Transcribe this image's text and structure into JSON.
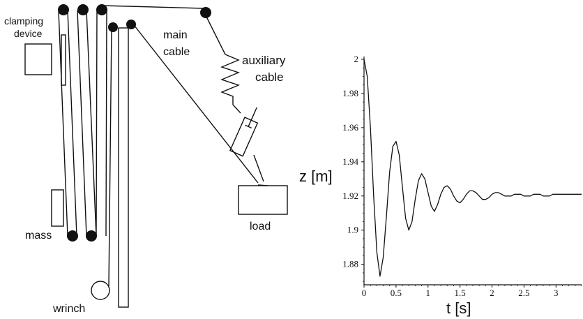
{
  "diagram": {
    "labels": {
      "clamping_device_line1": "clamping",
      "clamping_device_line2": "device",
      "main_cable_line1": "main",
      "main_cable_line2": "cable",
      "auxiliary_cable_line1": "auxiliary",
      "auxiliary_cable_line2": "cable",
      "mass": "mass",
      "load": "load",
      "wrinch": "wrinch"
    }
  },
  "chart_data": {
    "type": "line",
    "xlabel": "t [s]",
    "ylabel": "z [m]",
    "xlim": [
      0,
      3.4
    ],
    "ylim": [
      1.868,
      2.0
    ],
    "x_ticks": [
      "0",
      "0.5",
      "1",
      "1.5",
      "2",
      "2.5",
      "3"
    ],
    "y_ticks": [
      "2",
      "1.98",
      "1.96",
      "1.94",
      "1.92",
      "1.9",
      "1.88"
    ],
    "series": [
      {
        "x": [
          0,
          0.05,
          0.1,
          0.15,
          0.2,
          0.25,
          0.3,
          0.35,
          0.4,
          0.45,
          0.5,
          0.55,
          0.6,
          0.65,
          0.7,
          0.75,
          0.8,
          0.85,
          0.9,
          0.95,
          1.0,
          1.05,
          1.1,
          1.15,
          1.2,
          1.25,
          1.3,
          1.35,
          1.4,
          1.45,
          1.5,
          1.55,
          1.6,
          1.65,
          1.7,
          1.75,
          1.8,
          1.85,
          1.9,
          1.95,
          2.0,
          2.05,
          2.1,
          2.15,
          2.2,
          2.25,
          2.3,
          2.35,
          2.4,
          2.45,
          2.5,
          2.55,
          2.6,
          2.65,
          2.7,
          2.75,
          2.8,
          2.85,
          2.9,
          2.95,
          3.0,
          3.1,
          3.2,
          3.3,
          3.4
        ],
        "y": [
          2.0,
          1.99,
          1.96,
          1.92,
          1.887,
          1.873,
          1.884,
          1.908,
          1.934,
          1.949,
          1.952,
          1.944,
          1.925,
          1.907,
          1.9,
          1.905,
          1.918,
          1.929,
          1.933,
          1.93,
          1.922,
          1.914,
          1.911,
          1.915,
          1.921,
          1.925,
          1.926,
          1.924,
          1.92,
          1.917,
          1.916,
          1.918,
          1.921,
          1.923,
          1.923,
          1.922,
          1.92,
          1.918,
          1.918,
          1.919,
          1.921,
          1.922,
          1.922,
          1.921,
          1.92,
          1.92,
          1.92,
          1.921,
          1.921,
          1.921,
          1.92,
          1.92,
          1.92,
          1.921,
          1.921,
          1.921,
          1.92,
          1.92,
          1.92,
          1.921,
          1.921,
          1.921,
          1.921,
          1.921,
          1.921
        ]
      }
    ]
  }
}
